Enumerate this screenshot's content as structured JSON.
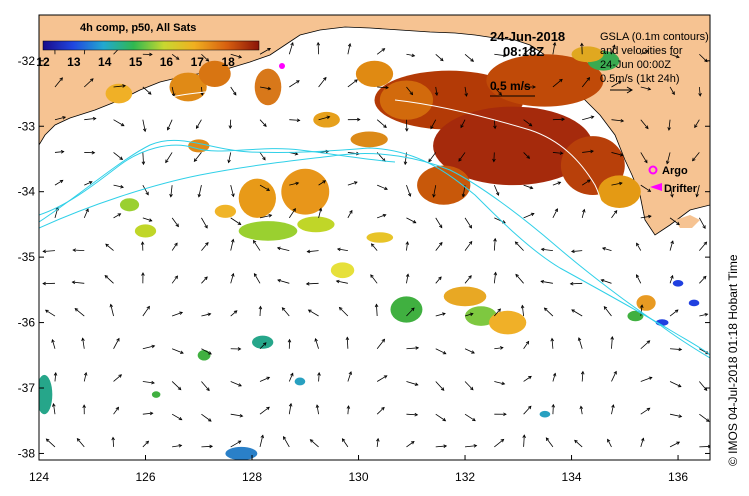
{
  "map": {
    "lon_range": [
      124,
      136.6
    ],
    "lat_range": [
      -38.1,
      -31.3
    ],
    "x_ticks": [
      "124",
      "126",
      "128",
      "130",
      "132",
      "134",
      "136"
    ],
    "y_ticks": [
      "-32",
      "-33",
      "-34",
      "-35",
      "-36",
      "-37",
      "-38"
    ],
    "land_color": "#f6c392",
    "sea_color": "#ffffff"
  },
  "header": {
    "date": "24-Jun-2018",
    "time": "08:18Z"
  },
  "colorbar": {
    "title": "4h comp, p50, All Sats",
    "labels": [
      "12",
      "13",
      "14",
      "15",
      "16",
      "17",
      "18"
    ],
    "min": 12,
    "max": 19
  },
  "info": {
    "lines": [
      "GSLA (0.1m contours)",
      "and velocities for",
      "24-Jun 00:00Z",
      "0.5m/s (1kt 24h)"
    ]
  },
  "velocity_scale": {
    "label": "0.5 m/s"
  },
  "legend": {
    "argo": "Argo",
    "drifter": "Drifter",
    "argo_color": "#ff00ff",
    "drifter_color": "#ff00ff"
  },
  "credit": "©  IMOS 04-Jul-2018 01:18 Hobart Time",
  "sst_patches": [
    {
      "lon": 131.7,
      "lat": -32.6,
      "rx": 1.4,
      "ry": 0.45,
      "color": "#b33a06"
    },
    {
      "lon": 132.9,
      "lat": -33.3,
      "rx": 1.5,
      "ry": 0.6,
      "color": "#a52a0c"
    },
    {
      "lon": 133.5,
      "lat": -32.3,
      "rx": 1.1,
      "ry": 0.4,
      "color": "#c04a08"
    },
    {
      "lon": 131.6,
      "lat": -33.9,
      "rx": 0.5,
      "ry": 0.3,
      "color": "#c8580a"
    },
    {
      "lon": 134.4,
      "lat": -33.6,
      "rx": 0.6,
      "ry": 0.45,
      "color": "#b8400a"
    },
    {
      "lon": 134.9,
      "lat": -34.0,
      "rx": 0.4,
      "ry": 0.25,
      "color": "#e49a14"
    },
    {
      "lon": 130.9,
      "lat": -32.6,
      "rx": 0.5,
      "ry": 0.3,
      "color": "#d26a0c"
    },
    {
      "lon": 130.3,
      "lat": -32.2,
      "rx": 0.35,
      "ry": 0.2,
      "color": "#e08a12"
    },
    {
      "lon": 134.6,
      "lat": -32.0,
      "rx": 0.3,
      "ry": 0.15,
      "color": "#3aaa50"
    },
    {
      "lon": 134.3,
      "lat": -31.9,
      "rx": 0.3,
      "ry": 0.12,
      "color": "#e0a820"
    },
    {
      "lon": 126.8,
      "lat": -32.4,
      "rx": 0.35,
      "ry": 0.22,
      "color": "#e08a16"
    },
    {
      "lon": 127.3,
      "lat": -32.2,
      "rx": 0.3,
      "ry": 0.2,
      "color": "#d87512"
    },
    {
      "lon": 128.3,
      "lat": -32.4,
      "rx": 0.25,
      "ry": 0.28,
      "color": "#d8781a"
    },
    {
      "lon": 125.5,
      "lat": -32.5,
      "rx": 0.25,
      "ry": 0.15,
      "color": "#f0b026"
    },
    {
      "lon": 129.4,
      "lat": -32.9,
      "rx": 0.25,
      "ry": 0.12,
      "color": "#e6a01c"
    },
    {
      "lon": 130.2,
      "lat": -33.2,
      "rx": 0.35,
      "ry": 0.12,
      "color": "#dc8a18"
    },
    {
      "lon": 129.0,
      "lat": -34.0,
      "rx": 0.45,
      "ry": 0.35,
      "color": "#e8961a"
    },
    {
      "lon": 128.1,
      "lat": -34.1,
      "rx": 0.35,
      "ry": 0.3,
      "color": "#e89a18"
    },
    {
      "lon": 128.3,
      "lat": -34.6,
      "rx": 0.55,
      "ry": 0.15,
      "color": "#9ad030"
    },
    {
      "lon": 129.2,
      "lat": -34.5,
      "rx": 0.35,
      "ry": 0.12,
      "color": "#c0d628"
    },
    {
      "lon": 127.5,
      "lat": -34.3,
      "rx": 0.2,
      "ry": 0.1,
      "color": "#f0b428"
    },
    {
      "lon": 126.0,
      "lat": -34.6,
      "rx": 0.2,
      "ry": 0.1,
      "color": "#c0d628"
    },
    {
      "lon": 127.0,
      "lat": -33.3,
      "rx": 0.2,
      "ry": 0.1,
      "color": "#e08a16"
    },
    {
      "lon": 125.7,
      "lat": -34.2,
      "rx": 0.18,
      "ry": 0.1,
      "color": "#9ad030"
    },
    {
      "lon": 129.7,
      "lat": -35.2,
      "rx": 0.22,
      "ry": 0.12,
      "color": "#e6e03a"
    },
    {
      "lon": 130.4,
      "lat": -34.7,
      "rx": 0.25,
      "ry": 0.08,
      "color": "#e8c428"
    },
    {
      "lon": 132.0,
      "lat": -35.6,
      "rx": 0.4,
      "ry": 0.15,
      "color": "#e8a824"
    },
    {
      "lon": 130.9,
      "lat": -35.8,
      "rx": 0.3,
      "ry": 0.2,
      "color": "#40b040"
    },
    {
      "lon": 132.3,
      "lat": -35.9,
      "rx": 0.3,
      "ry": 0.15,
      "color": "#7ec840"
    },
    {
      "lon": 132.8,
      "lat": -36.0,
      "rx": 0.35,
      "ry": 0.18,
      "color": "#f0b028"
    },
    {
      "lon": 135.4,
      "lat": -35.7,
      "rx": 0.18,
      "ry": 0.12,
      "color": "#e89a22"
    },
    {
      "lon": 135.2,
      "lat": -35.9,
      "rx": 0.15,
      "ry": 0.08,
      "color": "#40b040"
    },
    {
      "lon": 124.1,
      "lat": -37.1,
      "rx": 0.15,
      "ry": 0.3,
      "color": "#26a68a"
    },
    {
      "lon": 127.8,
      "lat": -38.0,
      "rx": 0.3,
      "ry": 0.1,
      "color": "#2a80c8"
    },
    {
      "lon": 128.2,
      "lat": -36.3,
      "rx": 0.2,
      "ry": 0.1,
      "color": "#26a68a"
    },
    {
      "lon": 127.1,
      "lat": -36.5,
      "rx": 0.12,
      "ry": 0.08,
      "color": "#40b040"
    },
    {
      "lon": 128.9,
      "lat": -36.9,
      "rx": 0.1,
      "ry": 0.06,
      "color": "#28a0c0"
    },
    {
      "lon": 133.5,
      "lat": -37.4,
      "rx": 0.1,
      "ry": 0.05,
      "color": "#28a0c0"
    },
    {
      "lon": 126.2,
      "lat": -37.1,
      "rx": 0.08,
      "ry": 0.05,
      "color": "#40b040"
    },
    {
      "lon": 135.7,
      "lat": -36.0,
      "rx": 0.12,
      "ry": 0.05,
      "color": "#2040e0"
    },
    {
      "lon": 136.0,
      "lat": -35.4,
      "rx": 0.1,
      "ry": 0.05,
      "color": "#2040e0"
    },
    {
      "lon": 136.3,
      "lat": -35.7,
      "rx": 0.1,
      "ry": 0.05,
      "color": "#2040e0"
    }
  ]
}
